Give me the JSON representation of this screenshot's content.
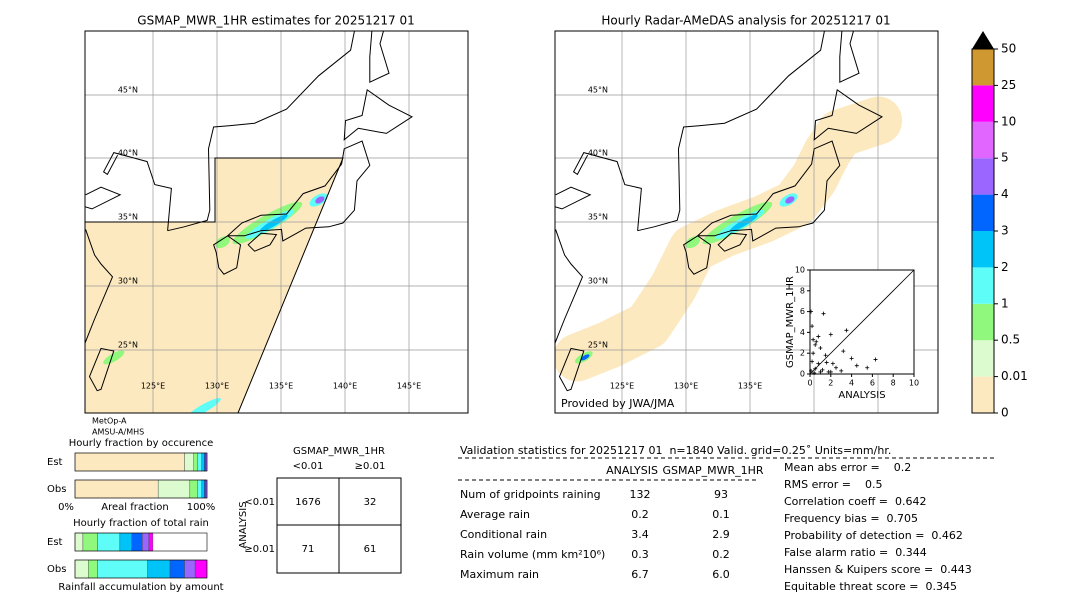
{
  "left_map": {
    "title": "GSMAP_MWR_1HR estimates for 20251217 01",
    "lat_labels": [
      "45°N",
      "40°N",
      "35°N",
      "30°N",
      "25°N"
    ],
    "lon_labels": [
      "125°E",
      "130°E",
      "135°E",
      "140°E",
      "145°E"
    ],
    "satellites": [
      "MetOp-A",
      "AMSU-A/MHS"
    ]
  },
  "right_map": {
    "title": "Hourly Radar-AMeDAS analysis for 20251217 01",
    "lat_labels": [
      "45°N",
      "40°N",
      "35°N",
      "30°N",
      "25°N"
    ],
    "lon_labels": [
      "125°E",
      "130°E",
      "135°E"
    ],
    "credit": "Provided by JWA/JMA"
  },
  "colorbar": {
    "ticks": [
      0,
      0.01,
      0.5,
      1,
      2,
      3,
      4,
      5,
      10,
      25,
      50
    ],
    "colors": [
      "#fde9c0",
      "#dcfccf",
      "#90f87c",
      "#5ffdf8",
      "#00c4f8",
      "#0066ff",
      "#9b66ff",
      "#e066ff",
      "#ff00ff",
      "#d09830"
    ],
    "extend_color": "#000000"
  },
  "chart_data": [
    {
      "type": "scatter",
      "xlabel": "ANALYSIS",
      "ylabel": "GSMAP_MWR_1HR",
      "xlim": [
        0,
        10
      ],
      "ylim": [
        0,
        10
      ],
      "xticks": [
        0,
        2,
        4,
        6,
        8,
        10
      ],
      "yticks": [
        0,
        2,
        4,
        6,
        8,
        10
      ],
      "diagonal": true,
      "color": "#000000",
      "x": [
        0.1,
        0.2,
        0.3,
        0.5,
        0.6,
        0.8,
        1.0,
        1.2,
        1.5,
        1.8,
        2.0,
        2.2,
        2.5,
        3.0,
        3.2,
        3.5,
        4.0,
        4.5,
        5.5,
        6.3,
        0.2,
        0.4,
        0.5,
        0.8,
        1.0,
        1.3,
        1.6,
        2.0,
        0.1,
        0.3
      ],
      "values": [
        0.3,
        1.2,
        2.0,
        0.5,
        3.1,
        1.0,
        2.5,
        0.4,
        1.8,
        0.2,
        3.8,
        1.0,
        0.6,
        0.3,
        2.2,
        4.2,
        1.5,
        0.8,
        0.6,
        1.4,
        4.6,
        0.1,
        2.8,
        3.6,
        0.2,
        5.8,
        1.1,
        0.2,
        6.0,
        3.3
      ]
    },
    {
      "type": "stacked_hbar",
      "title": "Hourly fraction by occurence",
      "categories": [
        "Est",
        "Obs"
      ],
      "xlim": [
        0,
        100
      ],
      "xlabels": [
        "0%",
        "Areal fraction",
        "100%"
      ],
      "series": [
        {
          "color": "#fde9c0",
          "values": [
            83,
            63
          ]
        },
        {
          "color": "#dcfccf",
          "values": [
            7,
            24
          ]
        },
        {
          "color": "#90f87c",
          "values": [
            3,
            6
          ]
        },
        {
          "color": "#5ffdf8",
          "values": [
            3,
            3
          ]
        },
        {
          "color": "#00c4f8",
          "values": [
            2,
            2
          ]
        },
        {
          "color": "#0066ff",
          "values": [
            1,
            1
          ]
        },
        {
          "color": "#9b66ff",
          "values": [
            1,
            1
          ]
        }
      ]
    },
    {
      "type": "stacked_hbar",
      "title": "Hourly fraction of total rain",
      "categories": [
        "Est",
        "Obs"
      ],
      "xlim": [
        0,
        100
      ],
      "xlabels": [
        "Rainfall accumulation by amount"
      ],
      "series": [
        {
          "color": "#dcfccf",
          "values": [
            6,
            10
          ]
        },
        {
          "color": "#90f87c",
          "values": [
            11,
            7
          ]
        },
        {
          "color": "#5ffdf8",
          "values": [
            17,
            38
          ]
        },
        {
          "color": "#00c4f8",
          "values": [
            9,
            17
          ]
        },
        {
          "color": "#0066ff",
          "values": [
            8,
            11
          ]
        },
        {
          "color": "#9b66ff",
          "values": [
            5,
            8
          ]
        },
        {
          "color": "#ff00ff",
          "values": [
            3,
            9
          ]
        }
      ]
    }
  ],
  "contingency": {
    "title": "GSMAP_MWR_1HR",
    "columns": [
      "<0.01",
      "≥0.01"
    ],
    "row_title": "ANALYSIS",
    "rows": [
      "<0.01",
      "≥0.01"
    ],
    "cells": [
      [
        1676,
        32
      ],
      [
        71,
        61
      ]
    ]
  },
  "validation": {
    "header": "Validation statistics for 20251217 01  n=1840 Valid. grid=0.25˚ Units=mm/hr.",
    "columns": [
      "ANALYSIS",
      "GSMAP_MWR_1HR"
    ],
    "rows": [
      {
        "label": "Num of gridpoints raining",
        "analysis": "132",
        "gsmap": "93"
      },
      {
        "label": "Average rain",
        "analysis": "0.2",
        "gsmap": "0.1"
      },
      {
        "label": "Conditional rain",
        "analysis": "3.4",
        "gsmap": "2.9"
      },
      {
        "label": "Rain volume (mm km²10⁶)",
        "analysis": "0.3",
        "gsmap": "0.2"
      },
      {
        "label": "Maximum rain",
        "analysis": "6.7",
        "gsmap": "6.0"
      }
    ],
    "scores": [
      "Mean abs error =    0.2",
      "RMS error =    0.5",
      "Correlation coeff =  0.642",
      "Frequency bias =  0.705",
      "Probability of detection =  0.462",
      "False alarm ratio =  0.344",
      "Hanssen & Kuipers score =  0.443",
      "Equitable threat score =  0.345"
    ]
  }
}
